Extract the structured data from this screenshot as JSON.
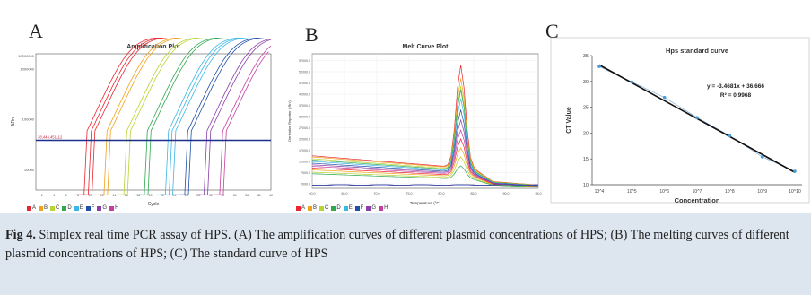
{
  "panels": {
    "a": "A",
    "b": "B",
    "c": "C"
  },
  "chart_data": [
    {
      "type": "line",
      "title": "Amplification Plot",
      "xlabel": "Cycle",
      "ylabel": "ΔRn",
      "y_scale": "log",
      "xticks": [
        "2",
        "4",
        "6",
        "8",
        "10",
        "12",
        "14",
        "16",
        "18",
        "20",
        "22",
        "24",
        "26",
        "28",
        "30",
        "32",
        "34",
        "36",
        "38",
        "40"
      ],
      "yticks": [
        "1000000",
        "1000000",
        "100000",
        "10000"
      ],
      "threshold_label": "38,444.451112",
      "legend": [
        "A",
        "B",
        "C",
        "D",
        "E",
        "F",
        "G",
        "H"
      ],
      "colors": [
        "#e8262f",
        "#f0a21c",
        "#b7d432",
        "#2fa84f",
        "#3bb6e5",
        "#1f4fa8",
        "#8a3fa8",
        "#c43fa0"
      ],
      "series": [
        {
          "name": "A",
          "ct": [
            10.5,
            11.2,
            11.8
          ]
        },
        {
          "name": "B",
          "ct": [
            13.8,
            14.4
          ]
        },
        {
          "name": "C",
          "ct": [
            17.1,
            17.7
          ]
        },
        {
          "name": "D",
          "ct": [
            20.5,
            21.1
          ]
        },
        {
          "name": "E",
          "ct": [
            24.0,
            24.6,
            25.2
          ]
        },
        {
          "name": "F",
          "ct": [
            27.2,
            27.8
          ]
        },
        {
          "name": "G",
          "ct": [
            30.4,
            31.0
          ]
        },
        {
          "name": "H",
          "ct": [
            33.0,
            33.6
          ]
        }
      ]
    },
    {
      "type": "line",
      "title": "Melt Curve Plot",
      "xlabel": "Temperature (°C)",
      "ylabel": "Derivative Reporter (-Rn')",
      "xticks": [
        "60.0",
        "65.0",
        "70.0",
        "75.0",
        "80.0",
        "85.0",
        "90.0",
        "95.0"
      ],
      "yticks": [
        "57000.0",
        "52000.0",
        "47000.0",
        "42000.0",
        "37000.0",
        "32000.0",
        "27000.0",
        "22000.0",
        "17000.0",
        "12000.0",
        "7000.0",
        "2000.0"
      ],
      "legend": [
        "A",
        "B",
        "C",
        "D",
        "E",
        "F",
        "G",
        "H"
      ],
      "colors": [
        "#e8262f",
        "#f0a21c",
        "#b7d432",
        "#2fa84f",
        "#3bb6e5",
        "#1f4fa8",
        "#8a3fa8",
        "#c43fa0"
      ],
      "peak_temp": 83.0,
      "peaks": [
        55000,
        49000,
        45500,
        44000,
        40000,
        35000,
        30500,
        26000,
        22000,
        18000,
        14000,
        10000
      ],
      "baselines": [
        14500,
        14000,
        13200,
        12600,
        12000,
        11200,
        10500,
        9800,
        9000,
        8200,
        7200,
        6500
      ]
    },
    {
      "type": "scatter",
      "title": "Hps standard curve",
      "xlabel": "Concentration",
      "ylabel": "CT Value",
      "categories": [
        "10^4",
        "10^5",
        "10^6",
        "10^7",
        "10^8",
        "10^9",
        "10^10"
      ],
      "values": [
        32.9,
        29.9,
        26.9,
        23.0,
        19.5,
        15.4,
        12.6
      ],
      "ylim": [
        10,
        35
      ],
      "yticks": [
        "10",
        "15",
        "20",
        "25",
        "30",
        "35"
      ],
      "equation": "y = -3.4681x + 36.666",
      "r2": "R² = 0.9968"
    }
  ],
  "caption": {
    "label": "Fig 4.",
    "text": " Simplex real time PCR assay of HPS. (A) The amplification curves of different plasmid concentrations of HPS; (B) The melting curves of different plasmid concentrations of HPS; (C) The standard curve of HPS"
  }
}
